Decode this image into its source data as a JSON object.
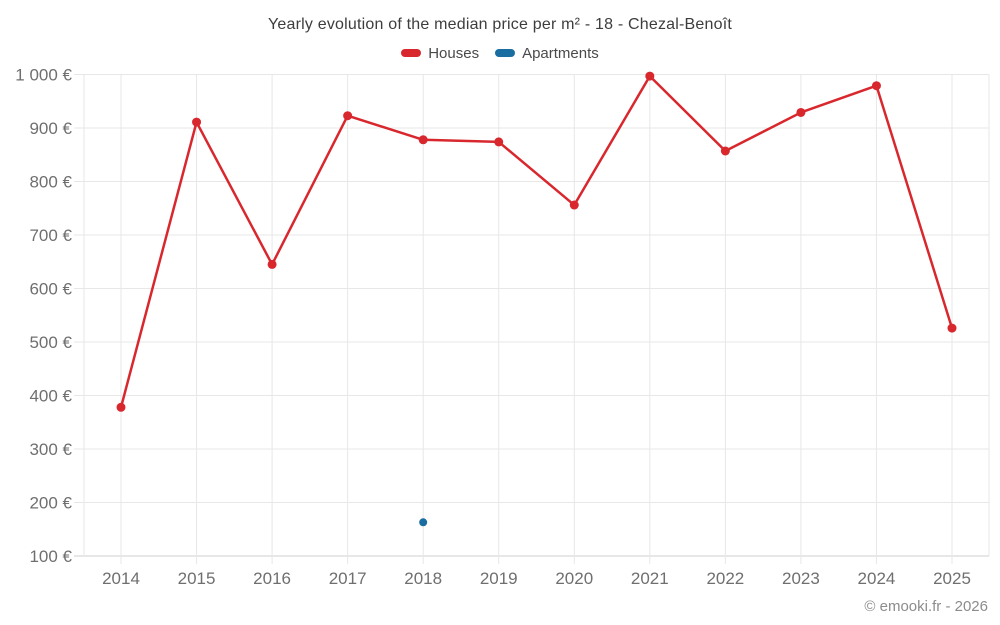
{
  "header": {
    "copyright": "© emooki.fr - 2026"
  },
  "chart_data": {
    "type": "line",
    "title": "Yearly evolution of the median price per m² - 18 - Chezal-Benoît",
    "legend_position": "top-center",
    "grid": true,
    "categories": [
      "2014",
      "2015",
      "2016",
      "2017",
      "2018",
      "2019",
      "2020",
      "2021",
      "2022",
      "2023",
      "2024",
      "2025"
    ],
    "series": [
      {
        "name": "Houses",
        "color": "#d8282e",
        "values": [
          378,
          911,
          645,
          923,
          878,
          874,
          756,
          997,
          857,
          929,
          979,
          526
        ]
      },
      {
        "name": "Apartments",
        "color": "#1a6da1",
        "values": [
          null,
          null,
          null,
          null,
          163,
          null,
          null,
          null,
          null,
          null,
          null,
          null
        ]
      }
    ],
    "yaxis": {
      "min": 100,
      "max": 1000,
      "step": 100,
      "unit": "€",
      "tick_labels": [
        "100 €",
        "200 €",
        "300 €",
        "400 €",
        "500 €",
        "600 €",
        "700 €",
        "800 €",
        "900 €",
        "1 000 €"
      ]
    },
    "colors": {
      "background": "#ffffff",
      "grid": "#e7e7e7",
      "axis": "#cfcfcf",
      "tick_text": "#6f6f6f",
      "title_text": "#3d3d3d",
      "legend_text": "#4a4a4a",
      "copyright_text": "#8c8c8c"
    }
  }
}
